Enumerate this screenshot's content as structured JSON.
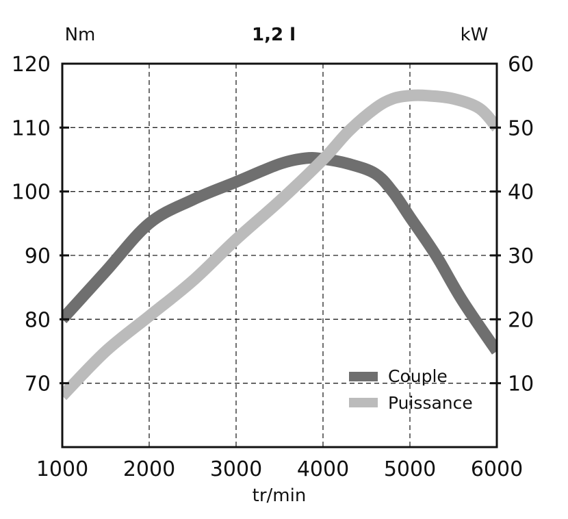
{
  "chart_data": {
    "type": "line",
    "title": "1,2 l",
    "xlabel": "tr/min",
    "ylabel_left": "Nm",
    "ylabel_right": "kW",
    "xlim": [
      1000,
      6000
    ],
    "ylim_left": [
      60,
      120
    ],
    "ylim_right": [
      0,
      60
    ],
    "x_ticks": [
      "1000",
      "2000",
      "3000",
      "4000",
      "5000",
      "6000"
    ],
    "y_ticks_left": [
      "70",
      "80",
      "90",
      "100",
      "110",
      "120"
    ],
    "y_ticks_right": [
      "10",
      "20",
      "30",
      "40",
      "50",
      "60"
    ],
    "grid": true,
    "legend_position": "bottom-right",
    "series": [
      {
        "name": "Couple",
        "axis": "left",
        "color": "#6f6f6f",
        "x": [
          1000,
          1500,
          2000,
          2500,
          3000,
          3500,
          3800,
          4000,
          4300,
          4600,
          4800,
          5000,
          5300,
          5600,
          6000
        ],
        "y": [
          80,
          87.5,
          95,
          98.7,
          101.5,
          104.3,
          105.2,
          105.1,
          104.3,
          102.8,
          100,
          96,
          90,
          83,
          75
        ]
      },
      {
        "name": "Puissance",
        "axis": "right",
        "color": "#bbbbbb",
        "x": [
          1000,
          1500,
          2000,
          2500,
          3000,
          3500,
          4000,
          4300,
          4600,
          4800,
          5000,
          5200,
          5500,
          5800,
          6000
        ],
        "y": [
          8,
          15,
          20.5,
          26,
          32.5,
          38.5,
          45,
          49.5,
          53,
          54.5,
          55,
          55,
          54.5,
          53,
          50
        ]
      }
    ]
  }
}
